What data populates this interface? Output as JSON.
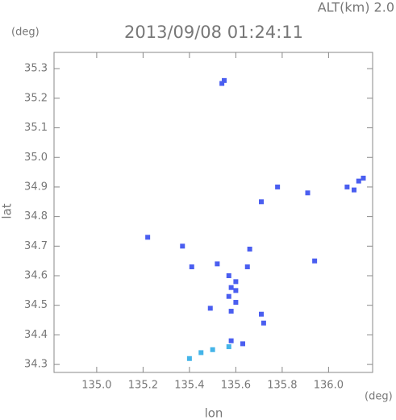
{
  "chart_data": {
    "type": "scatter",
    "title": "2013/09/08 01:24:11",
    "subtitle": "ALT(km) 2.0",
    "y_unit": "(deg)",
    "x_unit": "(deg)",
    "ylabel": "lat",
    "xlabel": "lon",
    "xlim": [
      134.816,
      136.19
    ],
    "ylim": [
      34.273,
      35.355
    ],
    "xticks": [
      {
        "value": 135,
        "label": "135.0"
      },
      135.2,
      135.4,
      135.6,
      135.8,
      {
        "value": 136,
        "label": "136.0"
      }
    ],
    "yticks": [
      34.3,
      34.4,
      34.5,
      34.6,
      34.7,
      34.8,
      34.9,
      {
        "value": 35,
        "label": "35.0"
      },
      35.1,
      35.2,
      35.3
    ],
    "grid": false,
    "series": [
      {
        "color": "#4a5ef0",
        "x": [
          135.54,
          135.55,
          136.15,
          136.13,
          136.08,
          136.11,
          135.78,
          135.91,
          135.71,
          135.22,
          135.37,
          135.66,
          135.94,
          135.41,
          135.52,
          135.65,
          135.57,
          135.6,
          135.58,
          135.6,
          135.57,
          135.6,
          135.58,
          135.49,
          135.71,
          135.72,
          135.58,
          135.63
        ],
        "y": [
          35.25,
          35.26,
          34.93,
          34.92,
          34.9,
          34.89,
          34.9,
          34.88,
          34.85,
          34.73,
          34.7,
          34.69,
          34.65,
          34.63,
          34.64,
          34.63,
          34.6,
          34.58,
          34.56,
          34.55,
          34.53,
          34.51,
          34.48,
          34.49,
          34.47,
          34.44,
          34.38,
          34.37
        ]
      },
      {
        "color": "#44b4e8",
        "x": [
          135.57,
          135.5,
          135.45,
          135.4
        ],
        "y": [
          34.36,
          34.35,
          34.34,
          34.32
        ]
      }
    ]
  }
}
